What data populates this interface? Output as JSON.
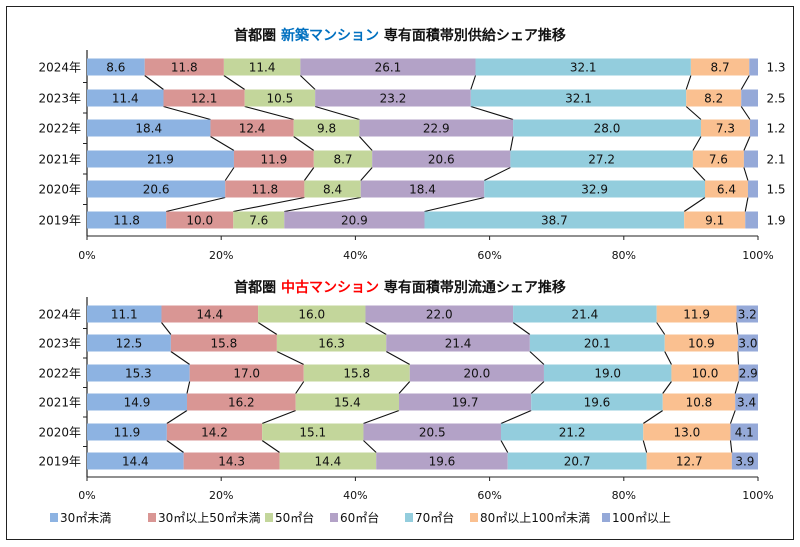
{
  "colors": {
    "s30": "#8db3e2",
    "s30_50": "#d99694",
    "s50": "#c3d69b",
    "s60": "#b3a2c7",
    "s70": "#93cddd",
    "s80_100": "#fac090",
    "s100": "#95a9d8",
    "title_new": "#0070c0",
    "title_used": "#ff0000"
  },
  "chart_data": [
    {
      "type": "bar",
      "stacked": "percent-horizontal",
      "title_parts": [
        "首都圏",
        "新築マンション",
        "専有面積帯別供給シェア推移"
      ],
      "categories": [
        "2024年",
        "2023年",
        "2022年",
        "2021年",
        "2020年",
        "2019年"
      ],
      "xticks": [
        "0%",
        "20%",
        "40%",
        "60%",
        "80%",
        "100%"
      ],
      "xlim": [
        0,
        100
      ],
      "last_series_labels_outside": true,
      "series": [
        {
          "name": "30㎡未満",
          "values": [
            8.6,
            11.4,
            18.4,
            21.9,
            20.6,
            11.8
          ]
        },
        {
          "name": "30㎡以上50㎡未満",
          "values": [
            11.8,
            12.1,
            12.4,
            11.9,
            11.8,
            10.0
          ]
        },
        {
          "name": "50㎡台",
          "values": [
            11.4,
            10.5,
            9.8,
            8.7,
            8.4,
            7.6
          ]
        },
        {
          "name": "60㎡台",
          "values": [
            26.1,
            23.2,
            22.9,
            20.6,
            18.4,
            20.9
          ]
        },
        {
          "name": "70㎡台",
          "values": [
            32.1,
            32.1,
            28.0,
            27.2,
            32.9,
            38.7
          ]
        },
        {
          "name": "80㎡以上100㎡未満",
          "values": [
            8.7,
            8.2,
            7.3,
            7.6,
            6.4,
            9.1
          ]
        },
        {
          "name": "100㎡以上",
          "values": [
            1.3,
            2.5,
            1.2,
            2.1,
            1.5,
            1.9
          ]
        }
      ]
    },
    {
      "type": "bar",
      "stacked": "percent-horizontal",
      "title_parts": [
        "首都圏",
        "中古マンション",
        "専有面積帯別流通シェア推移"
      ],
      "categories": [
        "2024年",
        "2023年",
        "2022年",
        "2021年",
        "2020年",
        "2019年"
      ],
      "xticks": [
        "0%",
        "20%",
        "40%",
        "60%",
        "80%",
        "100%"
      ],
      "xlim": [
        0,
        100
      ],
      "last_series_labels_outside": false,
      "series": [
        {
          "name": "30㎡未満",
          "values": [
            11.1,
            12.5,
            15.3,
            14.9,
            11.9,
            14.4
          ]
        },
        {
          "name": "30㎡以上50㎡未満",
          "values": [
            14.4,
            15.8,
            17.0,
            16.2,
            14.2,
            14.3
          ]
        },
        {
          "name": "50㎡台",
          "values": [
            16.0,
            16.3,
            15.8,
            15.4,
            15.1,
            14.4
          ]
        },
        {
          "name": "60㎡台",
          "values": [
            22.0,
            21.4,
            20.0,
            19.7,
            20.5,
            19.6
          ]
        },
        {
          "name": "70㎡台",
          "values": [
            21.4,
            20.1,
            19.0,
            19.6,
            21.2,
            20.7
          ]
        },
        {
          "name": "80㎡以上100㎡未満",
          "values": [
            11.9,
            10.9,
            10.0,
            10.8,
            13.0,
            12.7
          ]
        },
        {
          "name": "100㎡以上",
          "values": [
            3.2,
            3.0,
            2.9,
            3.4,
            4.1,
            3.9
          ]
        }
      ]
    }
  ],
  "legend": {
    "placement": "bottom",
    "items": [
      "30㎡未満",
      "30㎡以上50㎡未満",
      "50㎡台",
      "60㎡台",
      "70㎡台",
      "80㎡以上100㎡未満",
      "100㎡以上"
    ]
  }
}
